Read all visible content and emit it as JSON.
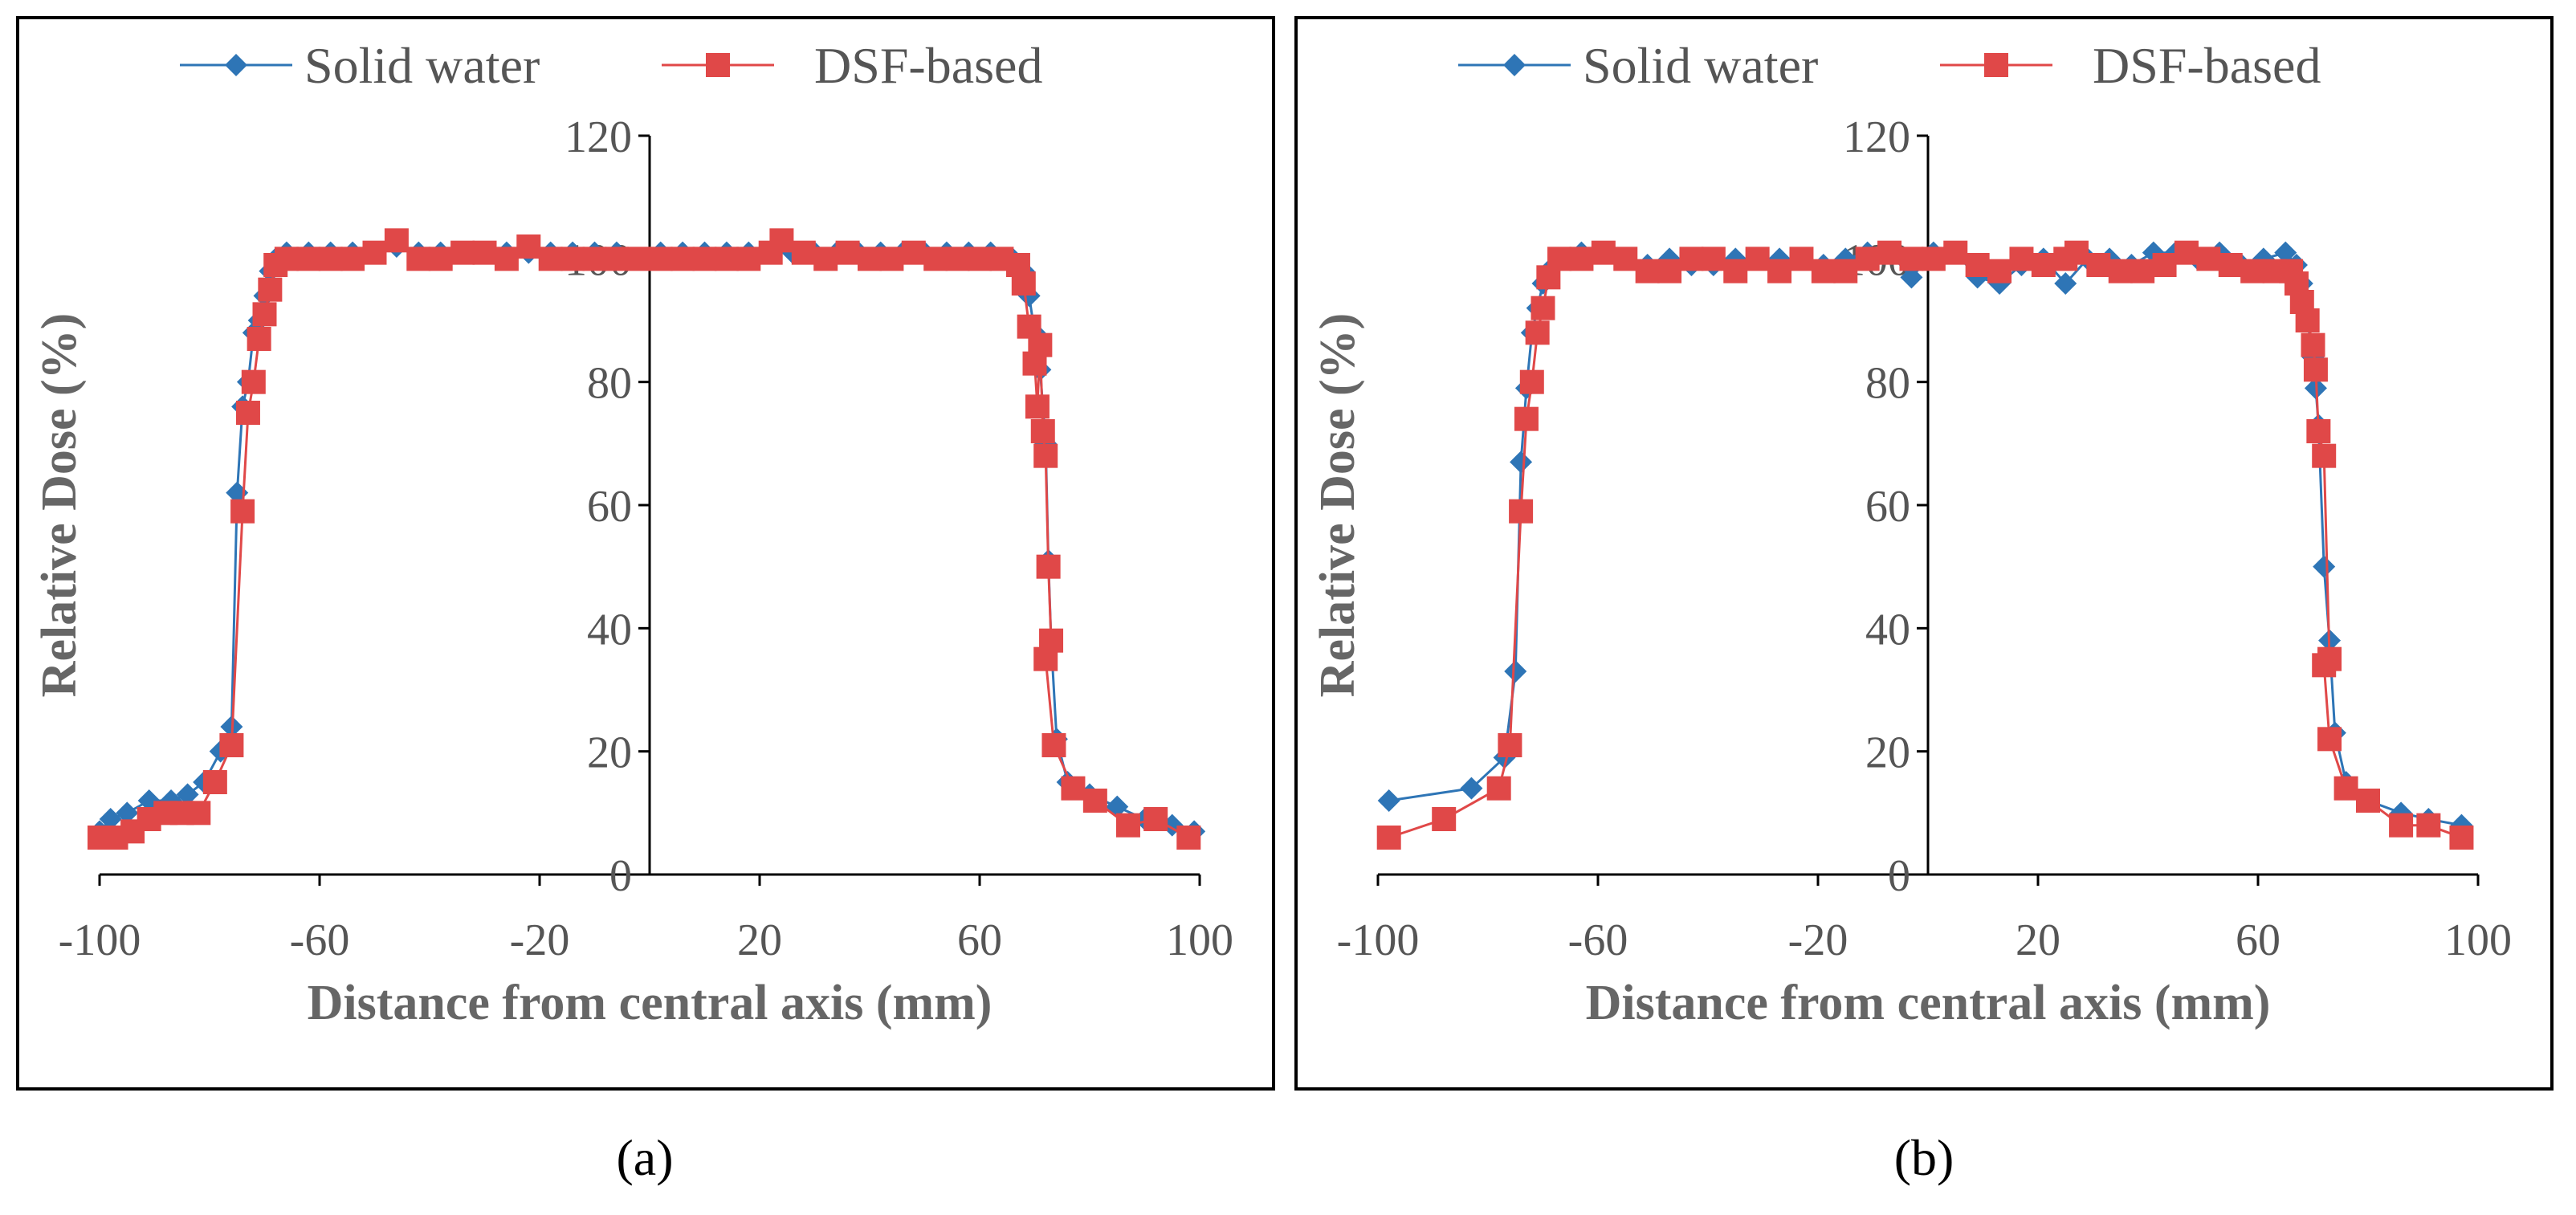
{
  "captions": [
    "(a)",
    "(b)"
  ],
  "colors": {
    "series1": "#2E75B6",
    "series2": "#E04848"
  },
  "chart_data": [
    {
      "type": "line",
      "xlabel": "Distance from central axis (mm)",
      "ylabel": "Relative Dose (%)",
      "xlim": [
        -100,
        100
      ],
      "ylim": [
        0,
        120
      ],
      "xticks": [
        -100,
        -60,
        -20,
        20,
        60,
        100
      ],
      "yticks": [
        0,
        20,
        40,
        60,
        80,
        100,
        120
      ],
      "legend": "top",
      "grid": false,
      "series": [
        {
          "name": "Solid water",
          "marker": "diamond",
          "points": [
            [
              -100,
              7
            ],
            [
              -98,
              9
            ],
            [
              -95,
              10
            ],
            [
              -91,
              12
            ],
            [
              -87,
              12
            ],
            [
              -84,
              13
            ],
            [
              -81,
              15
            ],
            [
              -78,
              20
            ],
            [
              -76,
              24
            ],
            [
              -75,
              62
            ],
            [
              -74,
              76
            ],
            [
              -73,
              80
            ],
            [
              -72,
              88
            ],
            [
              -71,
              90
            ],
            [
              -70,
              94
            ],
            [
              -69,
              98
            ],
            [
              -68,
              100
            ],
            [
              -66,
              101
            ],
            [
              -62,
              101
            ],
            [
              -58,
              101
            ],
            [
              -54,
              101
            ],
            [
              -50,
              101
            ],
            [
              -46,
              102
            ],
            [
              -42,
              101
            ],
            [
              -38,
              101
            ],
            [
              -34,
              101
            ],
            [
              -30,
              101
            ],
            [
              -26,
              101
            ],
            [
              -22,
              101
            ],
            [
              -18,
              101
            ],
            [
              -14,
              101
            ],
            [
              -10,
              101
            ],
            [
              -6,
              101
            ],
            [
              -2,
              100
            ],
            [
              2,
              101
            ],
            [
              6,
              101
            ],
            [
              10,
              101
            ],
            [
              14,
              101
            ],
            [
              18,
              101
            ],
            [
              22,
              101
            ],
            [
              26,
              101
            ],
            [
              30,
              101
            ],
            [
              34,
              101
            ],
            [
              38,
              101
            ],
            [
              42,
              101
            ],
            [
              46,
              101
            ],
            [
              50,
              101
            ],
            [
              54,
              101
            ],
            [
              58,
              101
            ],
            [
              62,
              101
            ],
            [
              66,
              100
            ],
            [
              68,
              98
            ],
            [
              69,
              94
            ],
            [
              70,
              88
            ],
            [
              71,
              82
            ],
            [
              72,
              70
            ],
            [
              72.5,
              51
            ],
            [
              73,
              38
            ],
            [
              74,
              22
            ],
            [
              76,
              15
            ],
            [
              80,
              13
            ],
            [
              85,
              11
            ],
            [
              90,
              9
            ],
            [
              95,
              8
            ],
            [
              99,
              7
            ]
          ]
        },
        {
          "name": "DSF-based",
          "marker": "square",
          "points": [
            [
              -100,
              6
            ],
            [
              -97,
              6
            ],
            [
              -94,
              7
            ],
            [
              -91,
              9
            ],
            [
              -88,
              10
            ],
            [
              -85,
              10
            ],
            [
              -82,
              10
            ],
            [
              -79,
              15
            ],
            [
              -76,
              21
            ],
            [
              -74,
              59
            ],
            [
              -73,
              75
            ],
            [
              -72,
              80
            ],
            [
              -71,
              87
            ],
            [
              -70,
              91
            ],
            [
              -69,
              95
            ],
            [
              -68,
              99
            ],
            [
              -66,
              100
            ],
            [
              -62,
              100
            ],
            [
              -58,
              100
            ],
            [
              -54,
              100
            ],
            [
              -50,
              101
            ],
            [
              -46,
              103
            ],
            [
              -42,
              100
            ],
            [
              -38,
              100
            ],
            [
              -34,
              101
            ],
            [
              -30,
              101
            ],
            [
              -26,
              100
            ],
            [
              -22,
              102
            ],
            [
              -18,
              100
            ],
            [
              -14,
              100
            ],
            [
              -10,
              100
            ],
            [
              -6,
              100
            ],
            [
              -2,
              100
            ],
            [
              2,
              100
            ],
            [
              6,
              100
            ],
            [
              10,
              100
            ],
            [
              14,
              100
            ],
            [
              18,
              100
            ],
            [
              22,
              101
            ],
            [
              24,
              103
            ],
            [
              28,
              101
            ],
            [
              32,
              100
            ],
            [
              36,
              101
            ],
            [
              40,
              100
            ],
            [
              44,
              100
            ],
            [
              48,
              101
            ],
            [
              52,
              100
            ],
            [
              56,
              100
            ],
            [
              60,
              100
            ],
            [
              64,
              100
            ],
            [
              67,
              99
            ],
            [
              68,
              96
            ],
            [
              69,
              89
            ],
            [
              70,
              83
            ],
            [
              70.5,
              76
            ],
            [
              71,
              86
            ],
            [
              71.5,
              72
            ],
            [
              72,
              68
            ],
            [
              72.5,
              50
            ],
            [
              73,
              38
            ],
            [
              72,
              35
            ],
            [
              73.5,
              21
            ],
            [
              77,
              14
            ],
            [
              81,
              12
            ],
            [
              87,
              8
            ],
            [
              92,
              9
            ],
            [
              98,
              6
            ]
          ]
        }
      ]
    },
    {
      "type": "line",
      "xlabel": "Distance from central axis (mm)",
      "ylabel": "Relative Dose (%)",
      "xlim": [
        -100,
        100
      ],
      "ylim": [
        0,
        120
      ],
      "xticks": [
        -100,
        -60,
        -20,
        20,
        60,
        100
      ],
      "yticks": [
        0,
        20,
        40,
        60,
        80,
        100,
        120
      ],
      "legend": "top",
      "grid": false,
      "series": [
        {
          "name": "Solid water",
          "marker": "diamond",
          "points": [
            [
              -98,
              12
            ],
            [
              -83,
              14
            ],
            [
              -77,
              19
            ],
            [
              -75,
              33
            ],
            [
              -74,
              67
            ],
            [
              -73,
              79
            ],
            [
              -72,
              88
            ],
            [
              -71,
              92
            ],
            [
              -70,
              96
            ],
            [
              -69,
              98
            ],
            [
              -67,
              100
            ],
            [
              -63,
              101
            ],
            [
              -59,
              101
            ],
            [
              -55,
              100
            ],
            [
              -51,
              99
            ],
            [
              -47,
              100
            ],
            [
              -43,
              99
            ],
            [
              -39,
              99
            ],
            [
              -35,
              100
            ],
            [
              -31,
              100
            ],
            [
              -27,
              100
            ],
            [
              -23,
              100
            ],
            [
              -19,
              99
            ],
            [
              -15,
              100
            ],
            [
              -11,
              101
            ],
            [
              -7,
              101
            ],
            [
              -3,
              97
            ],
            [
              1,
              101
            ],
            [
              5,
              101
            ],
            [
              9,
              97
            ],
            [
              13,
              96
            ],
            [
              17,
              99
            ],
            [
              21,
              100
            ],
            [
              25,
              96
            ],
            [
              29,
              100
            ],
            [
              33,
              100
            ],
            [
              37,
              99
            ],
            [
              41,
              101
            ],
            [
              45,
              101
            ],
            [
              49,
              100
            ],
            [
              53,
              101
            ],
            [
              57,
              99
            ],
            [
              61,
              100
            ],
            [
              65,
              101
            ],
            [
              67,
              99
            ],
            [
              68,
              96
            ],
            [
              69,
              90
            ],
            [
              70,
              84
            ],
            [
              70.5,
              79
            ],
            [
              71,
              73
            ],
            [
              72,
              50
            ],
            [
              73,
              38
            ],
            [
              74,
              23
            ],
            [
              76,
              15
            ],
            [
              80,
              12
            ],
            [
              86,
              10
            ],
            [
              91,
              9
            ],
            [
              97,
              8
            ]
          ]
        },
        {
          "name": "DSF-based",
          "marker": "square",
          "points": [
            [
              -98,
              6
            ],
            [
              -88,
              9
            ],
            [
              -78,
              14
            ],
            [
              -76,
              21
            ],
            [
              -74,
              59
            ],
            [
              -73,
              74
            ],
            [
              -72,
              80
            ],
            [
              -71,
              88
            ],
            [
              -70,
              92
            ],
            [
              -69,
              97
            ],
            [
              -67,
              100
            ],
            [
              -63,
              100
            ],
            [
              -59,
              101
            ],
            [
              -55,
              100
            ],
            [
              -51,
              98
            ],
            [
              -47,
              98
            ],
            [
              -43,
              100
            ],
            [
              -39,
              100
            ],
            [
              -35,
              98
            ],
            [
              -31,
              100
            ],
            [
              -27,
              98
            ],
            [
              -23,
              100
            ],
            [
              -19,
              98
            ],
            [
              -15,
              98
            ],
            [
              -11,
              100
            ],
            [
              -7,
              101
            ],
            [
              -3,
              100
            ],
            [
              1,
              100
            ],
            [
              5,
              101
            ],
            [
              9,
              99
            ],
            [
              13,
              98
            ],
            [
              17,
              100
            ],
            [
              21,
              99
            ],
            [
              25,
              100
            ],
            [
              27,
              101
            ],
            [
              31,
              99
            ],
            [
              35,
              98
            ],
            [
              39,
              98
            ],
            [
              43,
              99
            ],
            [
              47,
              101
            ],
            [
              51,
              100
            ],
            [
              55,
              99
            ],
            [
              59,
              98
            ],
            [
              63,
              98
            ],
            [
              66,
              98
            ],
            [
              67,
              96
            ],
            [
              68,
              93
            ],
            [
              69,
              90
            ],
            [
              70,
              86
            ],
            [
              70.5,
              82
            ],
            [
              71,
              72
            ],
            [
              72,
              68
            ],
            [
              73,
              35
            ],
            [
              72,
              34
            ],
            [
              73,
              22
            ],
            [
              76,
              14
            ],
            [
              80,
              12
            ],
            [
              86,
              8
            ],
            [
              91,
              8
            ],
            [
              97,
              6
            ]
          ]
        }
      ]
    }
  ]
}
